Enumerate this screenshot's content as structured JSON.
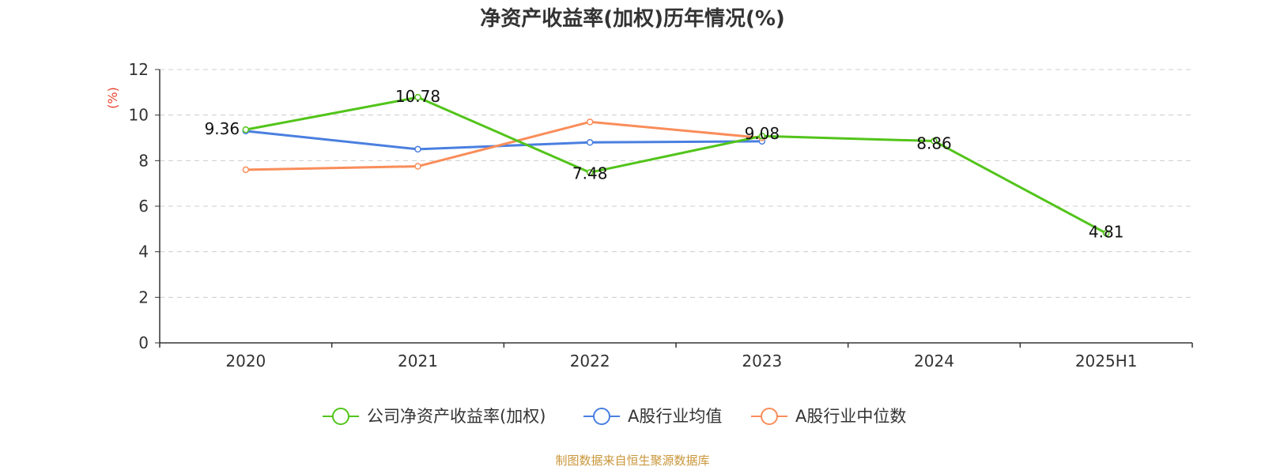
{
  "chart_data": {
    "type": "line",
    "title": "净资产收益率(加权)历年情况(%)",
    "y_unit_label": "(%)",
    "categories": [
      "2020",
      "2021",
      "2022",
      "2023",
      "2024",
      "2025H1"
    ],
    "ylim": [
      0,
      12
    ],
    "y_ticks": [
      "0",
      "2",
      "4",
      "6",
      "8",
      "10",
      "12"
    ],
    "grid": true,
    "legend_position": "bottom",
    "series": [
      {
        "name": "公司净资产收益率(加权)",
        "color": "#52c41a",
        "values": [
          9.36,
          10.78,
          7.48,
          9.08,
          8.86,
          4.81
        ],
        "labels": [
          "9.36",
          "10.78",
          "7.48",
          "9.08",
          "8.86",
          "4.81"
        ]
      },
      {
        "name": "A股行业均值",
        "color": "#4a7fe0",
        "values": [
          9.3,
          8.5,
          8.8,
          8.85,
          null,
          null
        ]
      },
      {
        "name": "A股行业中位数",
        "color": "#f98d5a",
        "values": [
          7.6,
          7.75,
          9.7,
          9.0,
          null,
          null
        ]
      }
    ]
  },
  "source_text": "制图数据来自恒生聚源数据库",
  "colors": {
    "unit_label": "#e8452c",
    "source_text": "#c9963a",
    "axis": "#333333",
    "grid": "#cccccc"
  }
}
